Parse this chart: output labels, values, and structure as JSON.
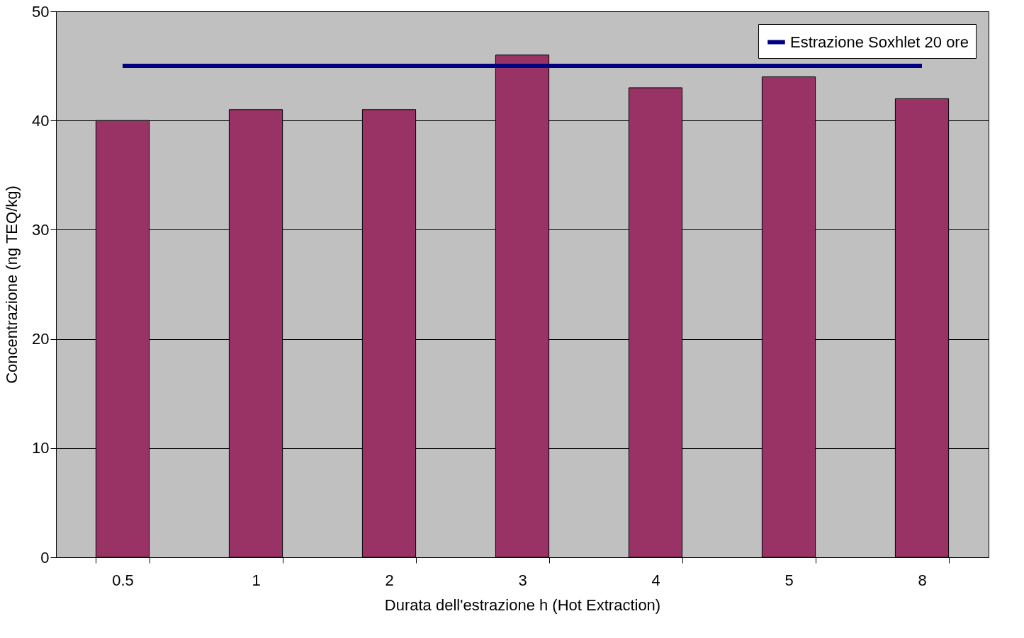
{
  "chart_data": {
    "type": "bar",
    "xlabel": "Durata dell'estrazione h (Hot Extraction)",
    "ylabel": "Concentrazione (ng TEQ/kg)",
    "categories": [
      "0.5",
      "1",
      "2",
      "3",
      "4",
      "5",
      "8"
    ],
    "series": [
      {
        "type": "bar",
        "color": "#993366",
        "values": [
          40,
          41,
          41,
          46,
          43,
          44,
          42
        ]
      },
      {
        "type": "line",
        "name": "Estrazione Soxhlet 20 ore",
        "color": "#000080",
        "values": [
          45,
          45,
          45,
          45,
          45,
          45,
          45
        ]
      }
    ],
    "ylim": [
      0,
      50
    ],
    "yticks": [
      0,
      10,
      20,
      30,
      40,
      50
    ],
    "grid": "y",
    "legend": "top right",
    "marker": "none",
    "line_style": "solid"
  }
}
